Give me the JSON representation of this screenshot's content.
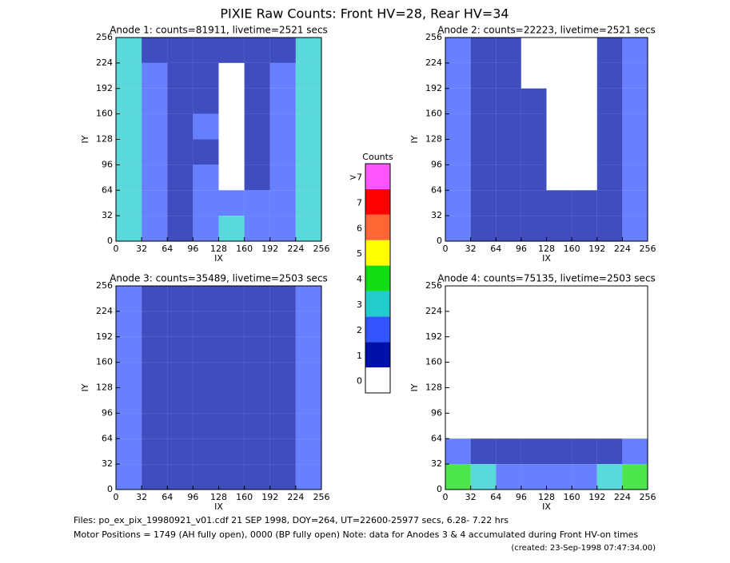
{
  "title": "PIXIE Raw Counts:  Front HV=28, Rear HV=34",
  "colorbar": {
    "title": "Counts",
    "labels": [
      "0",
      "1",
      "2",
      "3",
      "4",
      "5",
      "6",
      "7",
      ">7"
    ],
    "colors": [
      "#ffffff",
      "#0011aa",
      "#3355ff",
      "#22cccc",
      "#11dd11",
      "#ffff00",
      "#ff6633",
      "#ff0000",
      "#ff55ff"
    ]
  },
  "chart_data": [
    {
      "type": "heatmap",
      "title": "Anode 1: counts=81911, livetime=2521 secs",
      "xlabel": "IX",
      "ylabel": "IY",
      "xlim": [
        0,
        256
      ],
      "ylim": [
        0,
        256
      ],
      "xticks": [
        0,
        32,
        64,
        96,
        128,
        160,
        192,
        224,
        256
      ],
      "yticks": [
        0,
        32,
        64,
        96,
        128,
        160,
        192,
        224,
        256
      ],
      "z": [
        [
          3,
          1,
          0.5,
          0.5,
          0.5,
          0.5,
          1,
          3
        ],
        [
          3,
          1.5,
          0.5,
          0.5,
          0.3,
          0.5,
          1.5,
          3
        ],
        [
          2.5,
          1.5,
          0.5,
          1,
          0.3,
          0.5,
          1.5,
          3
        ],
        [
          3,
          1.5,
          1,
          1.5,
          0.3,
          0.5,
          1.5,
          3
        ],
        [
          3,
          1.5,
          1,
          0.5,
          0.3,
          0.5,
          1.5,
          3
        ],
        [
          3,
          1.5,
          1,
          1.5,
          0.3,
          0.5,
          1.5,
          3
        ],
        [
          3,
          1.5,
          1,
          1.5,
          2,
          1.5,
          1.5,
          3
        ],
        [
          3,
          1.5,
          1,
          1.5,
          2.5,
          1.5,
          1.5,
          3
        ]
      ]
    },
    {
      "type": "heatmap",
      "title": "Anode 2: counts=22223, livetime=2521 secs",
      "xlabel": "IX",
      "ylabel": "IY",
      "xlim": [
        0,
        256
      ],
      "ylim": [
        0,
        256
      ],
      "xticks": [
        0,
        32,
        64,
        96,
        128,
        160,
        192,
        224,
        256
      ],
      "yticks": [
        0,
        32,
        64,
        96,
        128,
        160,
        192,
        224,
        256
      ],
      "z": [
        [
          1.5,
          0.5,
          0.5,
          0.3,
          0.3,
          0.3,
          0.5,
          1.5
        ],
        [
          1.5,
          0.5,
          0.5,
          0.3,
          0.3,
          0.3,
          0.5,
          1.5
        ],
        [
          1.5,
          0.5,
          0.5,
          0.5,
          0.3,
          0.3,
          0.5,
          1.5
        ],
        [
          1.5,
          0.5,
          0.5,
          0.5,
          0.3,
          0.3,
          0.5,
          1.5
        ],
        [
          1.5,
          0.5,
          0.5,
          0.5,
          0.3,
          0.3,
          0.5,
          1.5
        ],
        [
          1.5,
          0.5,
          0.5,
          0.5,
          0.3,
          0.3,
          0.5,
          1.5
        ],
        [
          1.5,
          0.5,
          0.5,
          0.5,
          1,
          0.5,
          0.5,
          1.5
        ],
        [
          1.5,
          0.5,
          0.5,
          0.5,
          1,
          0.5,
          0.5,
          1.5
        ]
      ]
    },
    {
      "type": "heatmap",
      "title": "Anode 3: counts=35489, livetime=2503 secs",
      "xlabel": "IX",
      "ylabel": "IY",
      "xlim": [
        0,
        256
      ],
      "ylim": [
        0,
        256
      ],
      "xticks": [
        0,
        32,
        64,
        96,
        128,
        160,
        192,
        224,
        256
      ],
      "yticks": [
        0,
        32,
        64,
        96,
        128,
        160,
        192,
        224,
        256
      ],
      "z": [
        [
          1.5,
          1,
          1,
          1,
          1,
          1,
          1,
          1.5
        ],
        [
          1.5,
          1,
          1,
          1,
          1,
          1,
          1,
          1.5
        ],
        [
          1.5,
          1,
          1,
          1,
          1,
          1,
          1,
          1.5
        ],
        [
          1.5,
          1,
          1,
          1,
          1,
          1,
          1,
          1.5
        ],
        [
          1.5,
          1,
          1,
          1,
          1,
          1,
          1,
          1.5
        ],
        [
          1.5,
          1,
          1,
          1,
          1,
          1,
          1,
          1.5
        ],
        [
          1.5,
          1,
          1,
          1,
          1,
          1,
          1,
          1.5
        ],
        [
          1.5,
          1,
          1,
          1,
          1,
          1,
          1,
          1.5
        ]
      ]
    },
    {
      "type": "heatmap",
      "title": "Anode 4: counts=75135, livetime=2503 secs",
      "xlabel": "IX",
      "ylabel": "IY",
      "xlim": [
        0,
        256
      ],
      "ylim": [
        0,
        256
      ],
      "xticks": [
        0,
        32,
        64,
        96,
        128,
        160,
        192,
        224,
        256
      ],
      "yticks": [
        0,
        32,
        64,
        96,
        128,
        160,
        192,
        224,
        256
      ],
      "z": [
        [
          0,
          0,
          0,
          0,
          0,
          0,
          0,
          0
        ],
        [
          0,
          0,
          0,
          0,
          0,
          0,
          0,
          0
        ],
        [
          0,
          0,
          0,
          0,
          0,
          0,
          0,
          0
        ],
        [
          0,
          0,
          0,
          0,
          0,
          0,
          0,
          0
        ],
        [
          0,
          0,
          0,
          0,
          0,
          0,
          0,
          0
        ],
        [
          0,
          0,
          0,
          0,
          0,
          0,
          0,
          0
        ],
        [
          1.5,
          1,
          1,
          1,
          1,
          1,
          1,
          1.5
        ],
        [
          4,
          3,
          2,
          2,
          2,
          2,
          3,
          4
        ]
      ]
    }
  ],
  "footer": [
    "Files: po_ex_pix_19980921_v01.cdf    21 SEP 1998, DOY=264, UT=22600-25977 secs,  6.28- 7.22 hrs",
    "Motor Positions = 1749 (AH fully open), 0000 (BP fully open)    Note: data for Anodes 3 & 4 accumulated during Front HV-on times",
    "(created: 23-Sep-1998 07:47:34.00)"
  ]
}
